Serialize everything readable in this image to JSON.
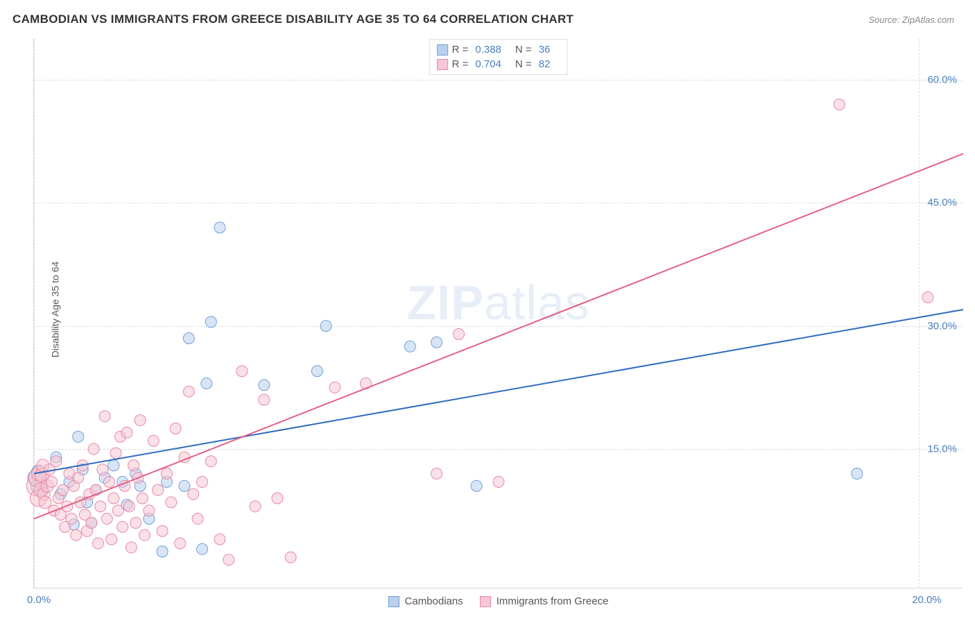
{
  "header": {
    "title": "CAMBODIAN VS IMMIGRANTS FROM GREECE DISABILITY AGE 35 TO 64 CORRELATION CHART",
    "source": "Source: ZipAtlas.com"
  },
  "watermark": {
    "zip": "ZIP",
    "atlas": "atlas"
  },
  "chart": {
    "type": "scatter",
    "ylabel": "Disability Age 35 to 64",
    "background_color": "#ffffff",
    "grid_color": "#dddddd",
    "axis_color": "#d7d7d7",
    "tick_color": "#4a7ebf",
    "xlim": [
      0,
      21
    ],
    "ylim": [
      -2,
      65
    ],
    "xticks": [
      {
        "v": 0,
        "label": "0.0%"
      },
      {
        "v": 20,
        "label": "20.0%"
      }
    ],
    "yticks": [
      {
        "v": 15,
        "label": "15.0%"
      },
      {
        "v": 30,
        "label": "30.0%"
      },
      {
        "v": 45,
        "label": "45.0%"
      },
      {
        "v": 60,
        "label": "60.0%"
      }
    ],
    "legend_top": [
      {
        "swatch_fill": "#b9d0ec",
        "swatch_stroke": "#6fa0d8",
        "r_label": "R =",
        "r_val": "0.388",
        "n_label": "N =",
        "n_val": "36"
      },
      {
        "swatch_fill": "#f6c7d4",
        "swatch_stroke": "#e889a6",
        "r_label": "R =",
        "r_val": "0.704",
        "n_label": "N =",
        "n_val": "82"
      }
    ],
    "legend_bottom": [
      {
        "swatch_fill": "#b9d0ec",
        "swatch_stroke": "#6fa0d8",
        "label": "Cambodians"
      },
      {
        "swatch_fill": "#f6c7d4",
        "swatch_stroke": "#e889a6",
        "label": "Immigrants from Greece"
      }
    ],
    "series": [
      {
        "name": "cambodians",
        "fill": "#b9d0ec",
        "stroke": "#6fa0d8",
        "fill_opacity": 0.55,
        "marker_r": 8,
        "line_color": "#2d6cc0",
        "line_width": 2,
        "trend": {
          "x1": 0,
          "y1": 12.0,
          "x2": 21,
          "y2": 32.0
        },
        "points": [
          [
            0.05,
            11.5,
            12
          ],
          [
            0.1,
            10.5,
            11
          ],
          [
            0.1,
            12.2,
            10
          ],
          [
            0.15,
            11.0,
            9
          ],
          [
            0.2,
            10,
            8
          ],
          [
            0.5,
            14.0,
            8
          ],
          [
            0.6,
            9.5,
            8
          ],
          [
            0.8,
            11.0,
            8
          ],
          [
            0.9,
            5.8,
            8
          ],
          [
            1.0,
            16.5,
            8
          ],
          [
            1.1,
            12.5,
            8
          ],
          [
            1.2,
            8.5,
            8
          ],
          [
            1.3,
            6.0,
            8
          ],
          [
            1.4,
            10.0,
            8
          ],
          [
            1.6,
            11.5,
            8
          ],
          [
            1.8,
            13.0,
            8
          ],
          [
            2.0,
            11.0,
            8
          ],
          [
            2.1,
            8.2,
            8
          ],
          [
            2.3,
            12.0,
            8
          ],
          [
            2.6,
            6.5,
            8
          ],
          [
            2.4,
            10.5,
            8
          ],
          [
            2.9,
            2.5,
            8
          ],
          [
            3.0,
            11.0,
            8
          ],
          [
            3.4,
            10.5,
            8
          ],
          [
            3.5,
            28.5,
            8
          ],
          [
            3.8,
            2.8,
            8
          ],
          [
            3.9,
            23.0,
            8
          ],
          [
            4.0,
            30.5,
            8
          ],
          [
            4.2,
            42.0,
            8
          ],
          [
            5.2,
            22.8,
            8
          ],
          [
            6.4,
            24.5,
            8
          ],
          [
            6.6,
            30.0,
            8
          ],
          [
            8.5,
            27.5,
            8
          ],
          [
            9.1,
            28.0,
            8
          ],
          [
            10.0,
            10.5,
            8
          ],
          [
            18.6,
            12.0,
            8
          ]
        ]
      },
      {
        "name": "greece",
        "fill": "#f6c7d4",
        "stroke": "#e889a6",
        "fill_opacity": 0.55,
        "marker_r": 8,
        "line_color": "#e65f87",
        "line_width": 2,
        "trend": {
          "x1": 0,
          "y1": 6.5,
          "x2": 21,
          "y2": 51.0
        },
        "points": [
          [
            0.05,
            10.5,
            14
          ],
          [
            0.08,
            11.5,
            13
          ],
          [
            0.1,
            9.0,
            12
          ],
          [
            0.12,
            12.0,
            11
          ],
          [
            0.15,
            10.0,
            10
          ],
          [
            0.18,
            11.8,
            10
          ],
          [
            0.2,
            13.0,
            9
          ],
          [
            0.22,
            9.5,
            9
          ],
          [
            0.25,
            8.5,
            9
          ],
          [
            0.3,
            10.5,
            9
          ],
          [
            0.35,
            12.5,
            8
          ],
          [
            0.4,
            11.0,
            8
          ],
          [
            0.45,
            7.5,
            8
          ],
          [
            0.5,
            13.5,
            8
          ],
          [
            0.55,
            9.0,
            8
          ],
          [
            0.6,
            7.0,
            8
          ],
          [
            0.65,
            10.0,
            8
          ],
          [
            0.7,
            5.5,
            8
          ],
          [
            0.75,
            8.0,
            8
          ],
          [
            0.8,
            12.0,
            8
          ],
          [
            0.85,
            6.5,
            8
          ],
          [
            0.9,
            10.5,
            8
          ],
          [
            0.95,
            4.5,
            8
          ],
          [
            1.0,
            11.5,
            8
          ],
          [
            1.05,
            8.5,
            8
          ],
          [
            1.1,
            13.0,
            8
          ],
          [
            1.15,
            7.0,
            8
          ],
          [
            1.2,
            5.0,
            8
          ],
          [
            1.25,
            9.5,
            8
          ],
          [
            1.3,
            6.0,
            8
          ],
          [
            1.35,
            15.0,
            8
          ],
          [
            1.4,
            10.0,
            8
          ],
          [
            1.45,
            3.5,
            8
          ],
          [
            1.5,
            8.0,
            8
          ],
          [
            1.55,
            12.5,
            8
          ],
          [
            1.6,
            19.0,
            8
          ],
          [
            1.65,
            6.5,
            8
          ],
          [
            1.7,
            11.0,
            8
          ],
          [
            1.75,
            4.0,
            8
          ],
          [
            1.8,
            9.0,
            8
          ],
          [
            1.85,
            14.5,
            8
          ],
          [
            1.9,
            7.5,
            8
          ],
          [
            1.95,
            16.5,
            8
          ],
          [
            2.0,
            5.5,
            8
          ],
          [
            2.05,
            10.5,
            8
          ],
          [
            2.1,
            17.0,
            8
          ],
          [
            2.15,
            8.0,
            8
          ],
          [
            2.2,
            3.0,
            8
          ],
          [
            2.25,
            13.0,
            8
          ],
          [
            2.3,
            6.0,
            8
          ],
          [
            2.35,
            11.5,
            8
          ],
          [
            2.4,
            18.5,
            8
          ],
          [
            2.45,
            9.0,
            8
          ],
          [
            2.5,
            4.5,
            8
          ],
          [
            2.6,
            7.5,
            8
          ],
          [
            2.7,
            16.0,
            8
          ],
          [
            2.8,
            10.0,
            8
          ],
          [
            2.9,
            5.0,
            8
          ],
          [
            3.0,
            12.0,
            8
          ],
          [
            3.1,
            8.5,
            8
          ],
          [
            3.2,
            17.5,
            8
          ],
          [
            3.3,
            3.5,
            8
          ],
          [
            3.4,
            14.0,
            8
          ],
          [
            3.5,
            22.0,
            8
          ],
          [
            3.6,
            9.5,
            8
          ],
          [
            3.7,
            6.5,
            8
          ],
          [
            3.8,
            11.0,
            8
          ],
          [
            4.0,
            13.5,
            8
          ],
          [
            4.2,
            4.0,
            8
          ],
          [
            4.4,
            1.5,
            8
          ],
          [
            4.7,
            24.5,
            8
          ],
          [
            5.0,
            8.0,
            8
          ],
          [
            5.2,
            21.0,
            8
          ],
          [
            5.5,
            9.0,
            8
          ],
          [
            5.8,
            1.8,
            8
          ],
          [
            6.8,
            22.5,
            8
          ],
          [
            7.5,
            23.0,
            8
          ],
          [
            9.1,
            12.0,
            8
          ],
          [
            9.6,
            29.0,
            8
          ],
          [
            10.5,
            11.0,
            8
          ],
          [
            18.2,
            57.0,
            8
          ],
          [
            20.2,
            33.5,
            8
          ]
        ]
      }
    ]
  }
}
